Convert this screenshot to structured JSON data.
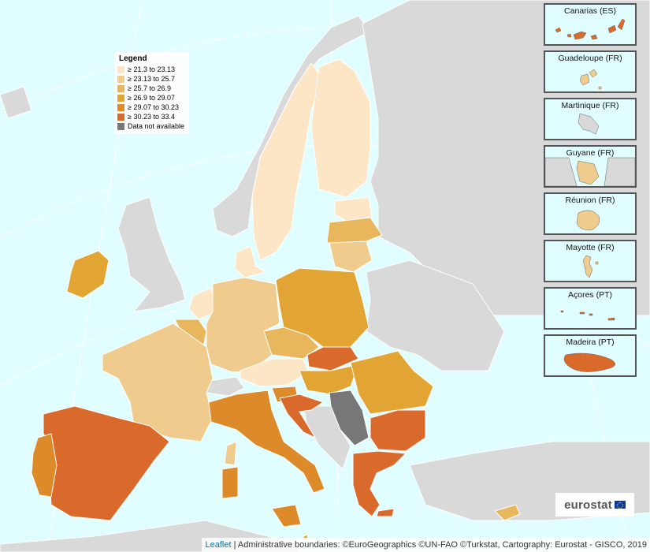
{
  "legend": {
    "title": "Legend",
    "items": [
      {
        "label": "≥ 21.3 to 23.13",
        "color": "#fde6c6"
      },
      {
        "label": "≥ 23.13 to 25.7",
        "color": "#f0cb8e"
      },
      {
        "label": "≥ 25.7 to 26.9",
        "color": "#e8b75d"
      },
      {
        "label": "≥ 26.9 to 29.07",
        "color": "#e2a533"
      },
      {
        "label": "≥ 29.07 to 30.23",
        "color": "#dd8a2b"
      },
      {
        "label": "≥ 30.23 to 33.4",
        "color": "#d96a2c"
      },
      {
        "label": "Data not available",
        "color": "#777777"
      }
    ]
  },
  "colors": {
    "sea": "#e0feff",
    "non_eu_land": "#d9d9d9",
    "graticule": "#ffffff",
    "border": "#888888"
  },
  "insets": [
    {
      "label": "Canarias (ES)",
      "class_color": "#d96a2c"
    },
    {
      "label": "Guadeloupe (FR)",
      "class_color": "#f0cb8e"
    },
    {
      "label": "Martinique (FR)",
      "class_color": "#d9d9d9"
    },
    {
      "label": "Guyane (FR)",
      "class_color": "#f0cb8e"
    },
    {
      "label": "Réunion (FR)",
      "class_color": "#f0cb8e"
    },
    {
      "label": "Mayotte (FR)",
      "class_color": "#f0cb8e"
    },
    {
      "label": "Açores (PT)",
      "class_color": "#d96a2c"
    },
    {
      "label": "Madeira (PT)",
      "class_color": "#d96a2c"
    }
  ],
  "logo": {
    "text": "eurostat"
  },
  "attribution": {
    "leaflet": "Leaflet",
    "text": " | Administrative boundaries: ©EuroGeographics ©UN-FAO ©Turkstat, Cartography: Eurostat - GISCO, 2019"
  }
}
